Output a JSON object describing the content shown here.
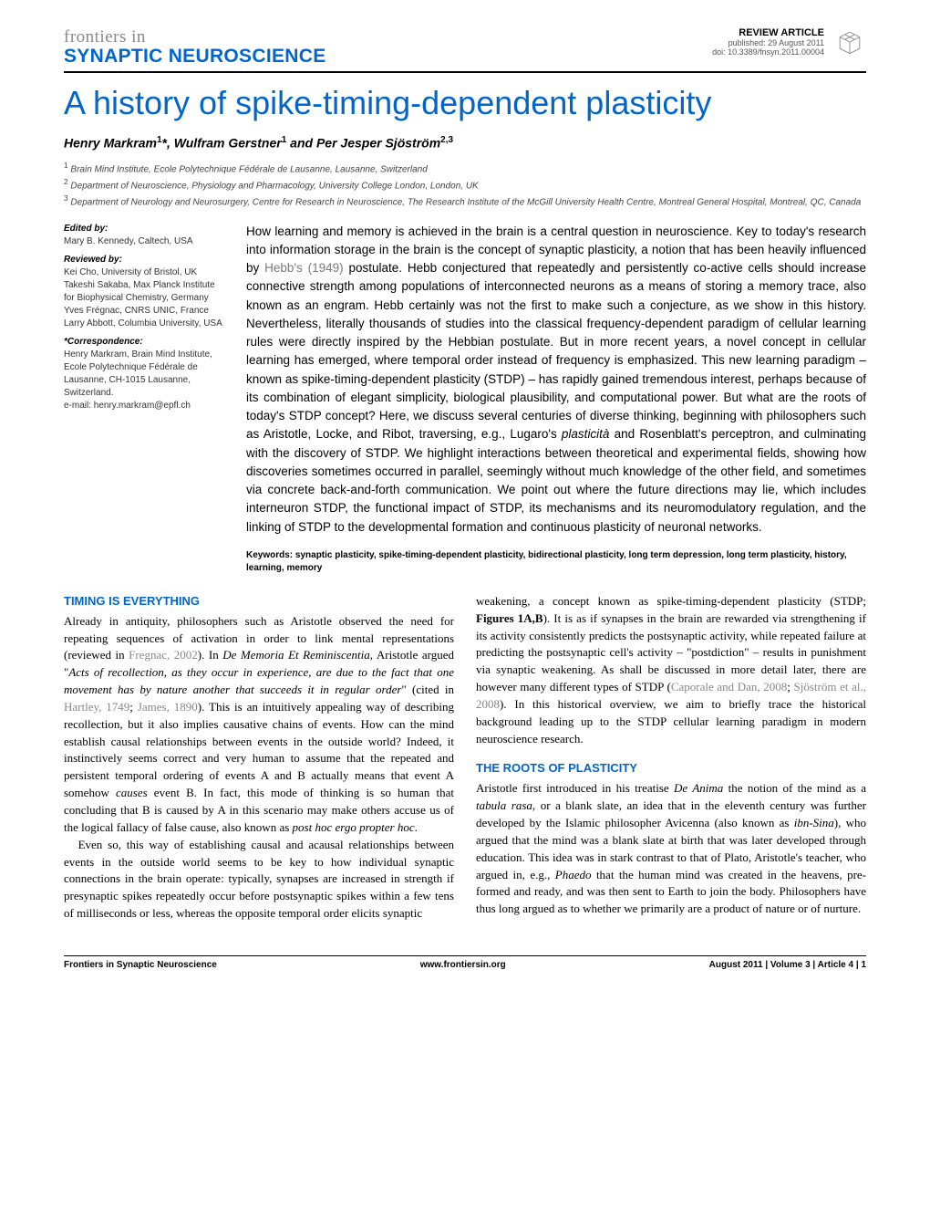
{
  "header": {
    "journal_prefix": "frontiers in",
    "journal_name": "SYNAPTIC NEUROSCIENCE",
    "article_type": "REVIEW ARTICLE",
    "published_line": "published: 29 August 2011",
    "doi_line": "doi: 10.3389/fnsyn.2011.00004"
  },
  "title": "A history of spike-timing-dependent plasticity",
  "authors_html": "Henry Markram<sup>1</sup>*, Wulfram Gerstner<sup>1</sup> and Per Jesper Sjöström<sup>2,3</sup>",
  "affiliations": [
    "<sup>1</sup> Brain Mind Institute, Ecole Polytechnique Fédérale de Lausanne, Lausanne, Switzerland",
    "<sup>2</sup> Department of Neuroscience, Physiology and Pharmacology, University College London, London, UK",
    "<sup>3</sup> Department of Neurology and Neurosurgery, Centre for Research in Neuroscience, The Research Institute of the McGill University Health Centre, Montreal General Hospital, Montreal, QC, Canada"
  ],
  "sidebar": {
    "edited_heading": "Edited by:",
    "edited_by": "Mary B. Kennedy, Caltech, USA",
    "reviewed_heading": "Reviewed by:",
    "reviewers": [
      "Kei Cho, University of Bristol, UK",
      "Takeshi Sakaba, Max Planck Institute for Biophysical Chemistry, Germany",
      "Yves Frégnac, CNRS UNIC, France",
      "Larry Abbott, Columbia University, USA"
    ],
    "correspondence_heading": "*Correspondence:",
    "correspondence": "Henry Markram, Brain Mind Institute, Ecole Polytechnique Fédérale de Lausanne, CH-1015 Lausanne, Switzerland.",
    "email": "e-mail: henry.markram@epfl.ch"
  },
  "abstract_html": "How learning and memory is achieved in the brain is a central question in neuroscience. Key to today's research into information storage in the brain is the concept of synaptic plasticity, a notion that has been heavily influenced by <span class=\"cite\">Hebb's (1949)</span> postulate. Hebb conjectured that repeatedly and persistently co-active cells should increase connective strength among populations of interconnected neurons as a means of storing a memory trace, also known as an engram. Hebb certainly was not the first to make such a conjecture, as we show in this history. Nevertheless, literally thousands of studies into the classical frequency-dependent paradigm of cellular learning rules were directly inspired by the Hebbian postulate. But in more recent years, a novel concept in cellular learning has emerged, where temporal order instead of frequency is emphasized. This new learning paradigm – known as spike-timing-dependent plasticity (STDP) – has rapidly gained tremendous interest, perhaps because of its combination of elegant simplicity, biological plausibility, and computational power. But what are the roots of today's STDP concept? Here, we discuss several centuries of diverse thinking, beginning with philosophers such as Aristotle, Locke, and Ribot, traversing, e.g., Lugaro's <em>plasticità</em> and Rosenblatt's perceptron, and culminating with the discovery of STDP. We highlight interactions between theoretical and experimental fields, showing how discoveries sometimes occurred in parallel, seemingly without much knowledge of the other field, and sometimes via concrete back-and-forth communication. We point out where the future directions may lie, which includes interneuron STDP, the functional impact of STDP, its mechanisms and its neuromodulatory regulation, and the linking of STDP to the developmental formation and continuous plasticity of neuronal networks.",
  "keywords": "Keywords: synaptic plasticity, spike-timing-dependent plasticity, bidirectional plasticity, long term depression, long term plasticity, history, learning, memory",
  "sections": {
    "left": {
      "heading": "TIMING IS EVERYTHING",
      "p1_html": "Already in antiquity, philosophers such as Aristotle observed the need for repeating sequences of activation in order to link mental representations (reviewed in <span class=\"cite\">Fregnac, 2002</span>). In <em>De Memoria Et Reminiscentia</em>, Aristotle argued \"<em>Acts of recollection, as they occur in experience, are due to the fact that one movement has by nature another that succeeds it in regular order</em>\" (cited in <span class=\"cite\">Hartley, 1749</span>; <span class=\"cite\">James, 1890</span>). This is an intuitively appealing way of describing recollection, but it also implies causative chains of events. How can the mind establish causal relationships between events in the outside world? Indeed, it instinctively seems correct and very human to assume that the repeated and persistent temporal ordering of events A and B actually means that event A somehow <em>causes</em> event B. In fact, this mode of thinking is so human that concluding that B is caused by A in this scenario may make others accuse us of the logical fallacy of false cause, also known as <em>post hoc ergo propter hoc</em>.",
      "p2_html": "Even so, this way of establishing causal and acausal relationships between events in the outside world seems to be key to how individual synaptic connections in the brain operate: typically, synapses are increased in strength if presynaptic spikes repeatedly occur before postsynaptic spikes within a few tens of milliseconds or less, whereas the opposite temporal order elicits synaptic"
    },
    "right_top_html": "weakening, a concept known as spike-timing-dependent plasticity (STDP; <span class=\"figref\">Figures 1A,B</span>). It is as if synapses in the brain are rewarded via strengthening if its activity consistently predicts the postsynaptic activity, while repeated failure at predicting the postsynaptic cell's activity – \"postdiction\" – results in punishment via synaptic weakening. As shall be discussed in more detail later, there are however many different types of STDP (<span class=\"cite\">Caporale and Dan, 2008</span>; <span class=\"cite\">Sjöström et al., 2008</span>). In this historical overview, we aim to briefly trace the historical background leading up to the STDP cellular learning paradigm in modern neuroscience research.",
    "right": {
      "heading": "THE ROOTS OF PLASTICITY",
      "p1_html": "Aristotle first introduced in his treatise <em>De Anima</em> the notion of the mind as a <em>tabula rasa</em>, or a blank slate, an idea that in the eleventh century was further developed by the Islamic philosopher Avicenna (also known as <em>ibn-Sina</em>), who argued that the mind was a blank slate at birth that was later developed through education. This idea was in stark contrast to that of Plato, Aristotle's teacher, who argued in, e.g., <em>Phaedo</em> that the human mind was created in the heavens, pre-formed and ready, and was then sent to Earth to join the body. Philosophers have thus long argued as to whether we primarily are a product of nature or of nurture."
    }
  },
  "footer": {
    "left": "Frontiers in Synaptic Neuroscience",
    "center": "www.frontiersin.org",
    "right": "August 2011 | Volume 3 | Article 4 | 1"
  },
  "colors": {
    "link_blue": "#0066cc",
    "cite_gray": "#888888"
  }
}
